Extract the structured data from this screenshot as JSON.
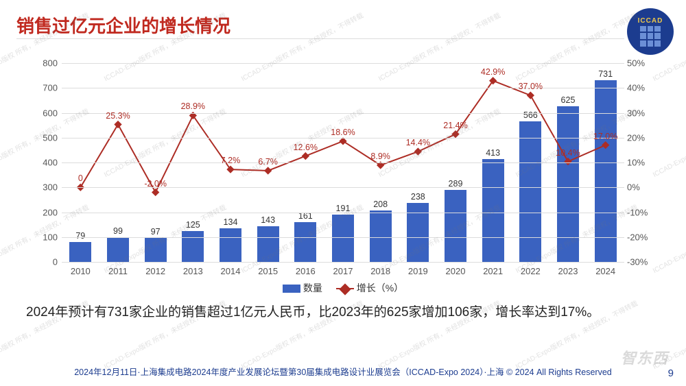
{
  "title": {
    "text": "销售过亿元企业的增长情况",
    "fontsize": 26,
    "color": "#c0291f"
  },
  "logo": {
    "text": "ICCAD",
    "bg": "#1c3c8f",
    "accent": "#f0c848"
  },
  "chart": {
    "type": "bar-line-combo",
    "categories": [
      "2010",
      "2011",
      "2012",
      "2013",
      "2014",
      "2015",
      "2016",
      "2017",
      "2018",
      "2019",
      "2020",
      "2021",
      "2022",
      "2023",
      "2024"
    ],
    "bars": {
      "label": "数量",
      "color": "#3a62c0",
      "values": [
        79,
        99,
        97,
        125,
        134,
        143,
        161,
        191,
        208,
        238,
        289,
        413,
        566,
        625,
        731
      ],
      "bar_width_frac": 0.58,
      "value_fontsize": 12.5,
      "value_color": "#333333"
    },
    "line": {
      "label": "增长（%）",
      "color": "#ad2d25",
      "marker": "diamond",
      "marker_size": 8,
      "line_width": 2,
      "values": [
        0,
        25.3,
        -2.0,
        28.9,
        7.2,
        6.7,
        12.6,
        18.6,
        8.9,
        14.4,
        21.4,
        42.9,
        37.0,
        10.4,
        17.0
      ],
      "value_labels": [
        "0",
        "25.3%",
        "-2.0%",
        "28.9%",
        "7.2%",
        "6.7%",
        "12.6%",
        "18.6%",
        "8.9%",
        "14.4%",
        "21.4%",
        "42.9%",
        "37.0%",
        "10.4%",
        "17.0%"
      ],
      "value_fontsize": 12.5
    },
    "y_left": {
      "min": 0,
      "max": 800,
      "step": 100,
      "fontsize": 13,
      "color": "#555555"
    },
    "y_right": {
      "min": -30,
      "max": 50,
      "step": 10,
      "fontsize": 13,
      "color": "#555555",
      "suffix": "%"
    },
    "grid_color": "#dcdcdc",
    "background": "#ffffff",
    "legend_fontsize": 14,
    "x_fontsize": 13
  },
  "description": {
    "text": "2024年预计有731家企业的销售超过1亿元人民币，比2023年的625家增加106家，增长率达到17%。",
    "fontsize": 19,
    "color": "#222222"
  },
  "footer": {
    "text": "2024年12月11日·上海集成电路2024年度产业发展论坛暨第30届集成电路设计业展览会（ICCAD-Expo 2024）·上海 © 2024 All Rights Reserved",
    "color": "#1c3c8f",
    "fontsize": 12.5
  },
  "page_number": "9",
  "watermark": {
    "text": "ICCAD-Expo版权 所有，未经授权，不得转载",
    "color": "rgba(120,120,120,0.22)"
  },
  "brand_watermark": "智东西"
}
